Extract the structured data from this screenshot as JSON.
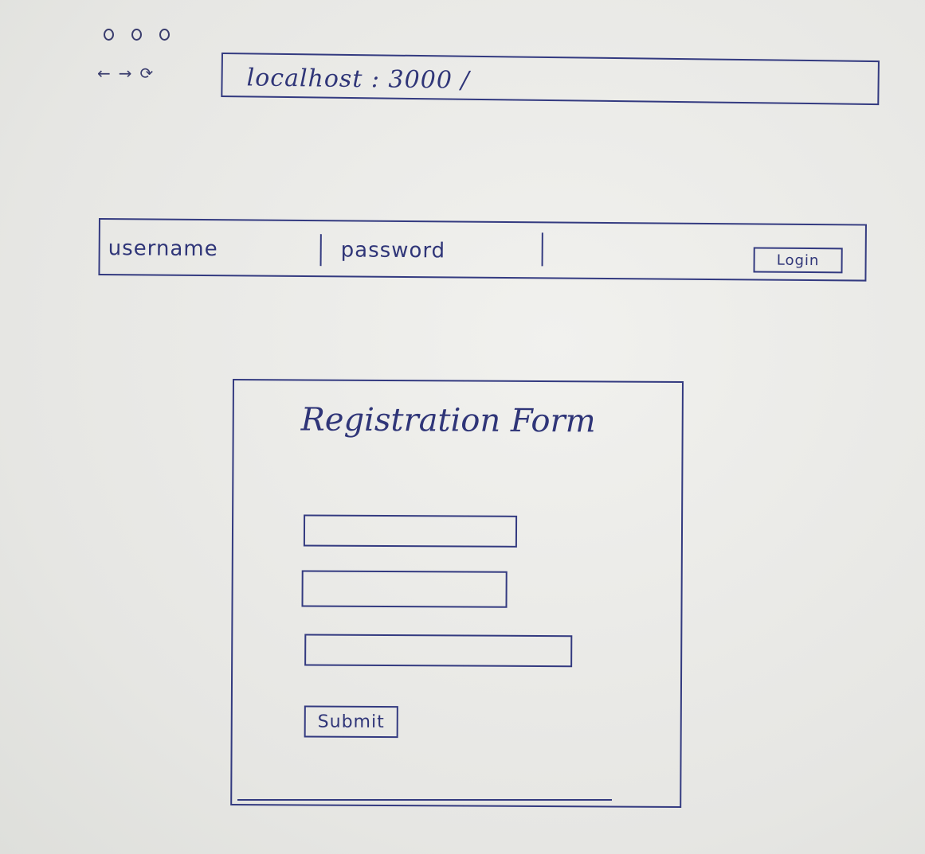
{
  "browser": {
    "window_controls": [
      "close",
      "minimize",
      "maximize"
    ],
    "nav": {
      "back_icon": "←",
      "forward_icon": "→",
      "reload_icon": "⟳"
    },
    "address": "localhost : 3000 /"
  },
  "login_bar": {
    "username_label": "username",
    "password_label": "password",
    "login_label": "Login"
  },
  "registration": {
    "title": "Registration Form",
    "submit_label": "Submit",
    "fields": [
      "",
      "",
      ""
    ]
  },
  "colors": {
    "ink": "#2f3578",
    "paper": "#e9e9e6"
  }
}
